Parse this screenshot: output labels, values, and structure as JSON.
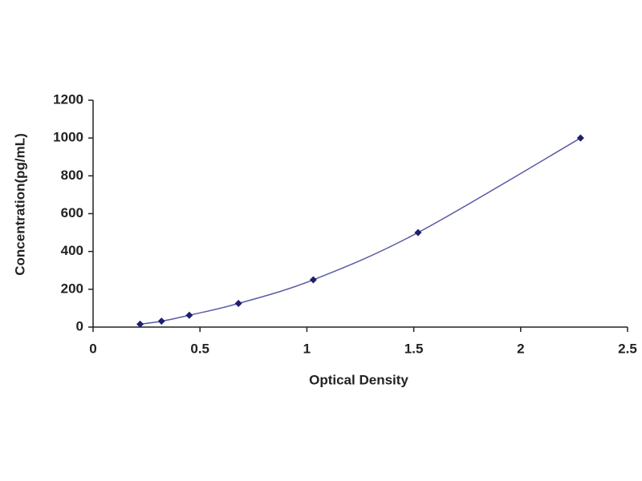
{
  "chart_data": {
    "type": "scatter",
    "x_label": "Optical Density",
    "y_label": "Concentration(pg/mL)",
    "x": [
      0.22,
      0.32,
      0.45,
      0.68,
      1.03,
      1.52,
      2.28
    ],
    "values": [
      15.6,
      31.2,
      62.5,
      125,
      250,
      500,
      1000
    ],
    "color": "#1f1f6e",
    "line_color": "#5a5aa8",
    "fit_line": true,
    "xlim": [
      0,
      2.5
    ],
    "xticks": [
      0,
      0.5,
      1,
      1.5,
      2,
      2.5
    ],
    "ylim": [
      0,
      1200
    ],
    "yticks": [
      0,
      200,
      400,
      600,
      800,
      1000,
      1200
    ],
    "grid": false
  }
}
